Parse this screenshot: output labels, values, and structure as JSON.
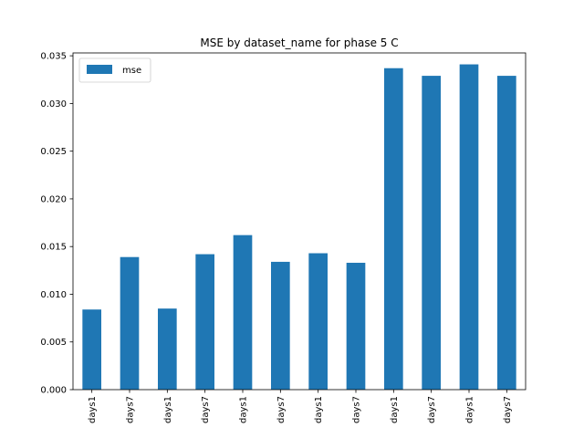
{
  "chart_data": {
    "type": "bar",
    "title": "MSE by dataset_name for phase 5 C",
    "xlabel": "",
    "ylabel": "",
    "categories": [
      "days1",
      "days7",
      "days1",
      "days7",
      "days1",
      "days7",
      "days1",
      "days7",
      "days1",
      "days7",
      "days1",
      "days7"
    ],
    "series": [
      {
        "name": "mse",
        "color": "#1f77b4",
        "values": [
          0.0084,
          0.0139,
          0.0085,
          0.0142,
          0.0162,
          0.0134,
          0.0143,
          0.0133,
          0.0337,
          0.0329,
          0.0341,
          0.0329
        ]
      }
    ],
    "ylim": [
      0,
      0.0353
    ],
    "yticks": [
      0.0,
      0.005,
      0.01,
      0.015,
      0.02,
      0.025,
      0.03,
      0.035
    ],
    "ytick_labels": [
      "0.000",
      "0.005",
      "0.010",
      "0.015",
      "0.020",
      "0.025",
      "0.030",
      "0.035"
    ],
    "grid": false,
    "legend": {
      "placement": "top-left",
      "entries": [
        "mse"
      ]
    }
  }
}
